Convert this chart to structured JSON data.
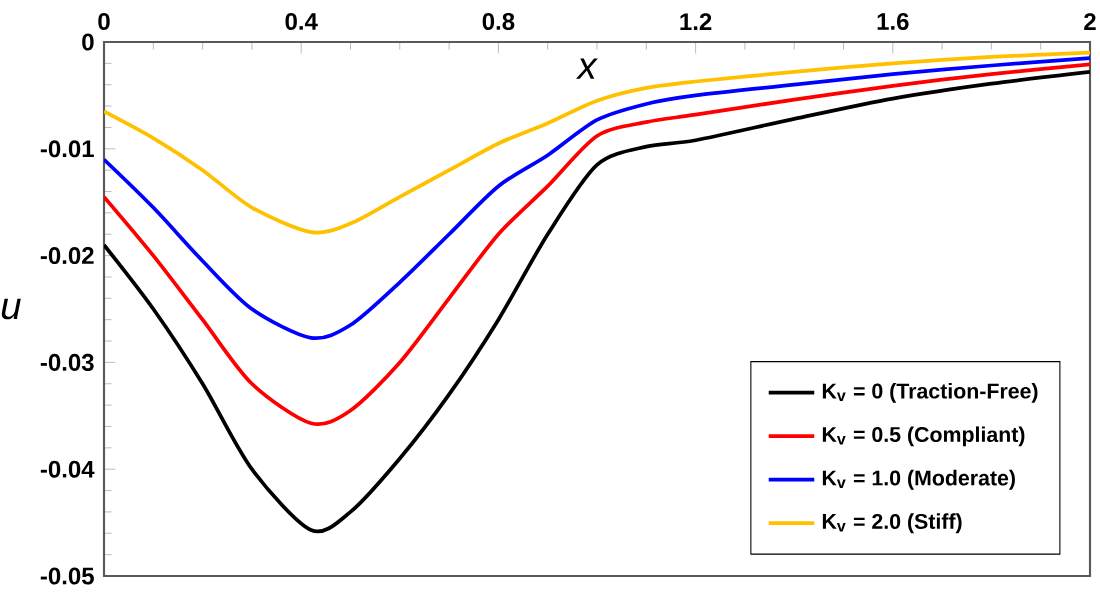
{
  "chart_data": {
    "type": "line",
    "xlabel": "x",
    "ylabel": "u",
    "xlim": [
      0,
      2
    ],
    "ylim": [
      -0.05,
      0
    ],
    "xticks": [
      0,
      0.4,
      0.8,
      1.2,
      1.6,
      2
    ],
    "yticks": [
      -0.05,
      -0.04,
      -0.03,
      -0.02,
      -0.01,
      0
    ],
    "legend": "bottom right",
    "line_style": "solid",
    "x": [
      0,
      0.1,
      0.2,
      0.3,
      0.42,
      0.5,
      0.6,
      0.7,
      0.8,
      0.9,
      1.0,
      1.1,
      1.2,
      1.4,
      1.6,
      1.8,
      2.0
    ],
    "series": [
      {
        "name": "K$_{v}$ = 0 (Traction-Free)",
        "color": "#000000",
        "values": [
          -0.019,
          -0.025,
          -0.032,
          -0.04,
          -0.0457,
          -0.044,
          -0.039,
          -0.033,
          -0.026,
          -0.018,
          -0.0115,
          -0.0098,
          -0.0092,
          -0.0072,
          -0.0053,
          -0.0039,
          -0.0028
        ]
      },
      {
        "name": "K$_{v}$ = 0.5 (Compliant)",
        "color": "#ff0000",
        "values": [
          -0.0145,
          -0.02,
          -0.026,
          -0.032,
          -0.0357,
          -0.0345,
          -0.03,
          -0.024,
          -0.018,
          -0.0135,
          -0.0088,
          -0.0075,
          -0.0068,
          -0.0054,
          -0.0041,
          -0.003,
          -0.0021
        ]
      },
      {
        "name": "K$_{v}$ = 1.0 (Moderate)",
        "color": "#0000ff",
        "values": [
          -0.011,
          -0.0155,
          -0.0205,
          -0.025,
          -0.0277,
          -0.0265,
          -0.0225,
          -0.018,
          -0.0135,
          -0.0106,
          -0.0073,
          -0.0058,
          -0.005,
          -0.004,
          -0.003,
          -0.0022,
          -0.0015
        ]
      },
      {
        "name": "K$_{v}$ = 2.0 (Stiff)",
        "color": "#ffc000",
        "values": [
          -0.0065,
          -0.009,
          -0.012,
          -0.0155,
          -0.0178,
          -0.017,
          -0.0145,
          -0.012,
          -0.0095,
          -0.0076,
          -0.0055,
          -0.0043,
          -0.0037,
          -0.0028,
          -0.002,
          -0.0014,
          -0.001
        ]
      }
    ]
  }
}
